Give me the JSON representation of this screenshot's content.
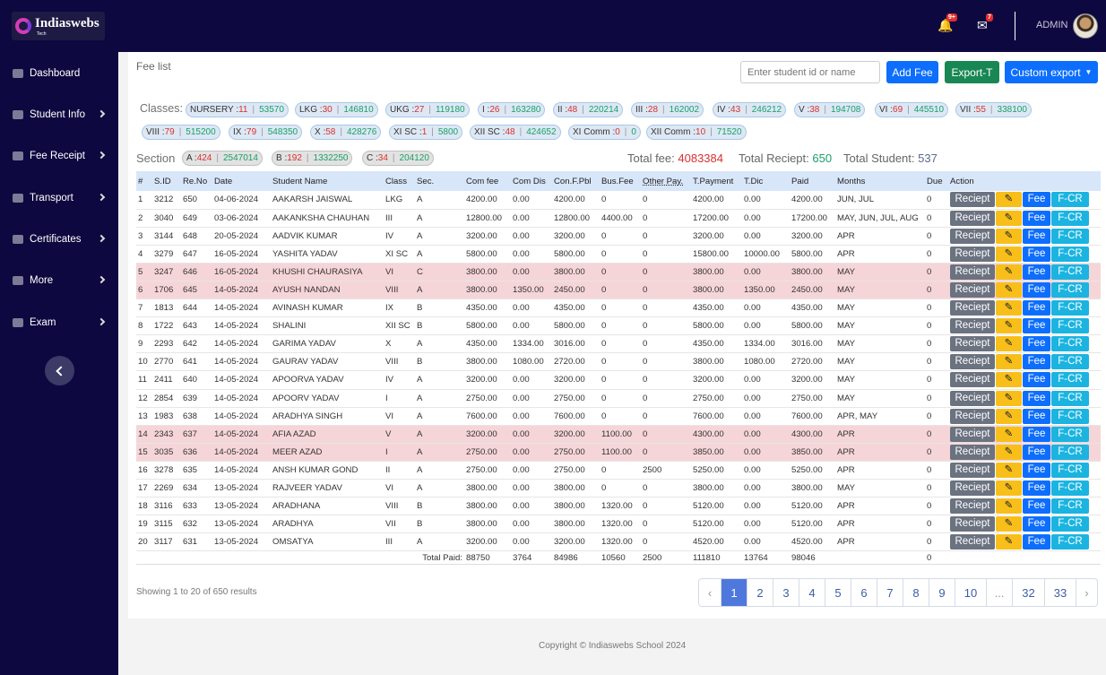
{
  "brand": {
    "name": "Indiaswebs",
    "sub": "Tech"
  },
  "header": {
    "notif_badge": "9+",
    "mail_badge": "7",
    "user": "ADMIN"
  },
  "sidebar": {
    "items": [
      {
        "label": "Dashboard",
        "chevron": false
      },
      {
        "label": "Student Info",
        "chevron": true
      },
      {
        "label": "Fee Receipt",
        "chevron": true
      },
      {
        "label": "Transport",
        "chevron": true
      },
      {
        "label": "Certificates",
        "chevron": true
      },
      {
        "label": "More",
        "chevron": true
      },
      {
        "label": "Exam",
        "chevron": true
      }
    ]
  },
  "page": {
    "title": "Fee list"
  },
  "toolbar": {
    "search_placeholder": "Enter student id or name",
    "add_fee": "Add Fee",
    "export_t": "Export-T",
    "custom_export": "Custom export"
  },
  "classes_label": "Classes:",
  "classes": [
    {
      "name": "NURSERY :",
      "count": "11",
      "amount": "53570"
    },
    {
      "name": "LKG :",
      "count": "30",
      "amount": "146810"
    },
    {
      "name": "UKG :",
      "count": "27",
      "amount": "119180"
    },
    {
      "name": "I :",
      "count": "26",
      "amount": "163280"
    },
    {
      "name": "II :",
      "count": "48",
      "amount": "220214"
    },
    {
      "name": "III :",
      "count": "28",
      "amount": "162002"
    },
    {
      "name": "IV :",
      "count": "43",
      "amount": "246212"
    },
    {
      "name": "V :",
      "count": "38",
      "amount": "194708"
    },
    {
      "name": "VI :",
      "count": "69",
      "amount": "445510"
    },
    {
      "name": "VII :",
      "count": "55",
      "amount": "338100"
    },
    {
      "name": "VIII :",
      "count": "79",
      "amount": "515200"
    },
    {
      "name": "IX :",
      "count": "79",
      "amount": "548350"
    },
    {
      "name": "X :",
      "count": "58",
      "amount": "428276"
    },
    {
      "name": "XI SC :",
      "count": "1",
      "amount": "5800"
    },
    {
      "name": "XII SC :",
      "count": "48",
      "amount": "424652"
    },
    {
      "name": "XI Comm :",
      "count": "0",
      "amount": "0"
    },
    {
      "name": "XII Comm :",
      "count": "10",
      "amount": "71520"
    }
  ],
  "section_label": "Section",
  "sections": [
    {
      "name": "A :",
      "count": "424",
      "amount": "2547014"
    },
    {
      "name": "B :",
      "count": "192",
      "amount": "1332250"
    },
    {
      "name": "C :",
      "count": "34",
      "amount": "204120"
    }
  ],
  "totals": {
    "fee_label": "Total fee:",
    "fee": "4083384",
    "receipt_label": "Total Reciept:",
    "receipt": "650",
    "student_label": "Total Student:",
    "student": "537"
  },
  "table": {
    "headers": [
      "#",
      "S.ID",
      "Re.No",
      "Date",
      "Student Name",
      "Class",
      "Sec.",
      "Com fee",
      "Com Dis",
      "Con.F.Pbl",
      "Bus.Fee",
      "Other Pay.",
      "T.Payment",
      "T.Dic",
      "Paid",
      "Months",
      "Due",
      "Action"
    ],
    "actions": {
      "receipt": "Reciept",
      "fee": "Fee",
      "fcr": "F-CR"
    },
    "rows": [
      {
        "cells": [
          "1",
          "3212",
          "650",
          "04-06-2024",
          "AAKARSH JAISWAL",
          "LKG",
          "A",
          "4200.00",
          "0.00",
          "4200.00",
          "0",
          "0",
          "4200.00",
          "0.00",
          "4200.00",
          "JUN, JUL",
          "0"
        ],
        "hl": false
      },
      {
        "cells": [
          "2",
          "3040",
          "649",
          "03-06-2024",
          "AAKANKSHA CHAUHAN",
          "III",
          "A",
          "12800.00",
          "0.00",
          "12800.00",
          "4400.00",
          "0",
          "17200.00",
          "0.00",
          "17200.00",
          "MAY, JUN, JUL, AUG",
          "0"
        ],
        "hl": false
      },
      {
        "cells": [
          "3",
          "3144",
          "648",
          "20-05-2024",
          "AADVIK KUMAR",
          "IV",
          "A",
          "3200.00",
          "0.00",
          "3200.00",
          "0",
          "0",
          "3200.00",
          "0.00",
          "3200.00",
          "APR",
          "0"
        ],
        "hl": false
      },
      {
        "cells": [
          "4",
          "3279",
          "647",
          "16-05-2024",
          "YASHITA YADAV",
          "XI SC",
          "A",
          "5800.00",
          "0.00",
          "5800.00",
          "0",
          "0",
          "15800.00",
          "10000.00",
          "5800.00",
          "APR",
          "0"
        ],
        "hl": false
      },
      {
        "cells": [
          "5",
          "3247",
          "646",
          "16-05-2024",
          "KHUSHI CHAURASIYA",
          "VI",
          "C",
          "3800.00",
          "0.00",
          "3800.00",
          "0",
          "0",
          "3800.00",
          "0.00",
          "3800.00",
          "MAY",
          "0"
        ],
        "hl": true
      },
      {
        "cells": [
          "6",
          "1706",
          "645",
          "14-05-2024",
          "AYUSH NANDAN",
          "VIII",
          "A",
          "3800.00",
          "1350.00",
          "2450.00",
          "0",
          "0",
          "3800.00",
          "1350.00",
          "2450.00",
          "MAY",
          "0"
        ],
        "hl": true
      },
      {
        "cells": [
          "7",
          "1813",
          "644",
          "14-05-2024",
          "AVINASH KUMAR",
          "IX",
          "B",
          "4350.00",
          "0.00",
          "4350.00",
          "0",
          "0",
          "4350.00",
          "0.00",
          "4350.00",
          "MAY",
          "0"
        ],
        "hl": false
      },
      {
        "cells": [
          "8",
          "1722",
          "643",
          "14-05-2024",
          "SHALINI",
          "XII SC",
          "B",
          "5800.00",
          "0.00",
          "5800.00",
          "0",
          "0",
          "5800.00",
          "0.00",
          "5800.00",
          "MAY",
          "0"
        ],
        "hl": false
      },
      {
        "cells": [
          "9",
          "2293",
          "642",
          "14-05-2024",
          "GARIMA YADAV",
          "X",
          "A",
          "4350.00",
          "1334.00",
          "3016.00",
          "0",
          "0",
          "4350.00",
          "1334.00",
          "3016.00",
          "MAY",
          "0"
        ],
        "hl": false
      },
      {
        "cells": [
          "10",
          "2770",
          "641",
          "14-05-2024",
          "GAURAV YADAV",
          "VIII",
          "B",
          "3800.00",
          "1080.00",
          "2720.00",
          "0",
          "0",
          "3800.00",
          "1080.00",
          "2720.00",
          "MAY",
          "0"
        ],
        "hl": false
      },
      {
        "cells": [
          "11",
          "2411",
          "640",
          "14-05-2024",
          "APOORVA YADAV",
          "IV",
          "A",
          "3200.00",
          "0.00",
          "3200.00",
          "0",
          "0",
          "3200.00",
          "0.00",
          "3200.00",
          "MAY",
          "0"
        ],
        "hl": false
      },
      {
        "cells": [
          "12",
          "2854",
          "639",
          "14-05-2024",
          "APOORV YADAV",
          "I",
          "A",
          "2750.00",
          "0.00",
          "2750.00",
          "0",
          "0",
          "2750.00",
          "0.00",
          "2750.00",
          "MAY",
          "0"
        ],
        "hl": false
      },
      {
        "cells": [
          "13",
          "1983",
          "638",
          "14-05-2024",
          "ARADHYA SINGH",
          "VI",
          "A",
          "7600.00",
          "0.00",
          "7600.00",
          "0",
          "0",
          "7600.00",
          "0.00",
          "7600.00",
          "APR, MAY",
          "0"
        ],
        "hl": false
      },
      {
        "cells": [
          "14",
          "2343",
          "637",
          "14-05-2024",
          "AFIA AZAD",
          "V",
          "A",
          "3200.00",
          "0.00",
          "3200.00",
          "1100.00",
          "0",
          "4300.00",
          "0.00",
          "4300.00",
          "APR",
          "0"
        ],
        "hl": true
      },
      {
        "cells": [
          "15",
          "3035",
          "636",
          "14-05-2024",
          "MEER AZAD",
          "I",
          "A",
          "2750.00",
          "0.00",
          "2750.00",
          "1100.00",
          "0",
          "3850.00",
          "0.00",
          "3850.00",
          "APR",
          "0"
        ],
        "hl": true
      },
      {
        "cells": [
          "16",
          "3278",
          "635",
          "14-05-2024",
          "ANSH KUMAR GOND",
          "II",
          "A",
          "2750.00",
          "0.00",
          "2750.00",
          "0",
          "2500",
          "5250.00",
          "0.00",
          "5250.00",
          "APR",
          "0"
        ],
        "hl": false
      },
      {
        "cells": [
          "17",
          "2269",
          "634",
          "13-05-2024",
          "RAJVEER YADAV",
          "VI",
          "A",
          "3800.00",
          "0.00",
          "3800.00",
          "0",
          "0",
          "3800.00",
          "0.00",
          "3800.00",
          "MAY",
          "0"
        ],
        "hl": false
      },
      {
        "cells": [
          "18",
          "3116",
          "633",
          "13-05-2024",
          "ARADHANA",
          "VIII",
          "B",
          "3800.00",
          "0.00",
          "3800.00",
          "1320.00",
          "0",
          "5120.00",
          "0.00",
          "5120.00",
          "APR",
          "0"
        ],
        "hl": false
      },
      {
        "cells": [
          "19",
          "3115",
          "632",
          "13-05-2024",
          "ARADHYA",
          "VII",
          "B",
          "3800.00",
          "0.00",
          "3800.00",
          "1320.00",
          "0",
          "5120.00",
          "0.00",
          "5120.00",
          "APR",
          "0"
        ],
        "hl": false
      },
      {
        "cells": [
          "20",
          "3117",
          "631",
          "13-05-2024",
          "OMSATYA",
          "III",
          "A",
          "3200.00",
          "0.00",
          "3200.00",
          "1320.00",
          "0",
          "4520.00",
          "0.00",
          "4520.00",
          "APR",
          "0"
        ],
        "hl": false
      }
    ],
    "footer": {
      "label": "Total Paid:",
      "values": [
        "88750",
        "3764",
        "84986",
        "10560",
        "2500",
        "111810",
        "13764",
        "98046",
        "",
        "0"
      ]
    }
  },
  "pagination": {
    "showing": "Showing",
    "from": "1",
    "to_word": "to",
    "to": "20",
    "of_word": "of",
    "total": "650",
    "results_word": "results",
    "prev": "‹",
    "pages": [
      "1",
      "2",
      "3",
      "4",
      "5",
      "6",
      "7",
      "8",
      "9",
      "10",
      "...",
      "32",
      "33"
    ],
    "next": "›",
    "active": "1"
  },
  "footer": {
    "copyright": "Copyright © Indiaswebs School 2024"
  },
  "colors": {
    "sidebar": "#0e0840",
    "primary": "#0d6efd",
    "success": "#198754",
    "row_highlight": "#f6d5d9"
  }
}
